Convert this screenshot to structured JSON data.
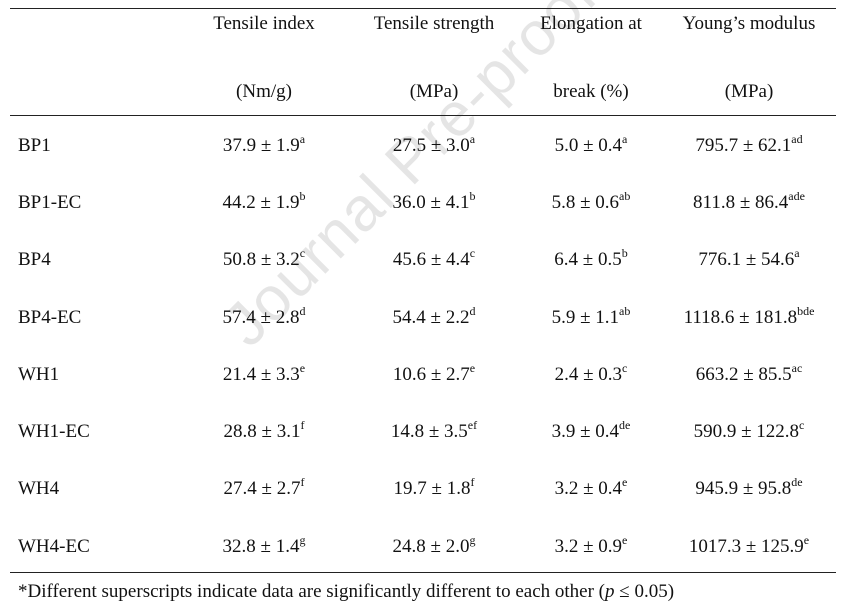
{
  "watermark": "Journal Pre-proof",
  "headers": [
    {
      "line1": "",
      "line2": ""
    },
    {
      "line1": "Tensile index",
      "line2": "(Nm/g)"
    },
    {
      "line1": "Tensile strength",
      "line2": "(MPa)"
    },
    {
      "line1": "Elongation at",
      "line2": "break (%)"
    },
    {
      "line1": "Young’s modulus",
      "line2": "(MPa)"
    }
  ],
  "rows": [
    {
      "name": "BP1",
      "cells": [
        {
          "v": "37.9 ± 1.9",
          "s": "a"
        },
        {
          "v": "27.5 ± 3.0",
          "s": "a"
        },
        {
          "v": "5.0 ± 0.4",
          "s": "a"
        },
        {
          "v": "795.7 ± 62.1",
          "s": "ad"
        }
      ]
    },
    {
      "name": "BP1-EC",
      "cells": [
        {
          "v": "44.2 ± 1.9",
          "s": "b"
        },
        {
          "v": "36.0 ± 4.1",
          "s": "b"
        },
        {
          "v": "5.8 ± 0.6",
          "s": "ab"
        },
        {
          "v": "811.8 ± 86.4",
          "s": "ade"
        }
      ]
    },
    {
      "name": "BP4",
      "cells": [
        {
          "v": "50.8 ± 3.2",
          "s": "c"
        },
        {
          "v": "45.6 ± 4.4",
          "s": "c"
        },
        {
          "v": "6.4 ± 0.5",
          "s": "b"
        },
        {
          "v": "776.1 ± 54.6",
          "s": "a"
        }
      ]
    },
    {
      "name": "BP4-EC",
      "cells": [
        {
          "v": "57.4 ± 2.8",
          "s": "d"
        },
        {
          "v": "54.4 ± 2.2",
          "s": "d"
        },
        {
          "v": "5.9 ± 1.1",
          "s": "ab"
        },
        {
          "v": "1118.6 ± 181.8",
          "s": "bde"
        }
      ]
    },
    {
      "name": "WH1",
      "cells": [
        {
          "v": "21.4 ± 3.3",
          "s": "e"
        },
        {
          "v": "10.6 ± 2.7",
          "s": "e"
        },
        {
          "v": "2.4 ± 0.3",
          "s": "c"
        },
        {
          "v": "663.2 ± 85.5",
          "s": "ac"
        }
      ]
    },
    {
      "name": "WH1-EC",
      "cells": [
        {
          "v": "28.8 ± 3.1",
          "s": "f"
        },
        {
          "v": "14.8 ± 3.5",
          "s": "ef"
        },
        {
          "v": "3.9 ± 0.4",
          "s": "de"
        },
        {
          "v": "590.9 ± 122.8",
          "s": "c"
        }
      ]
    },
    {
      "name": "WH4",
      "cells": [
        {
          "v": "27.4 ± 2.7",
          "s": "f"
        },
        {
          "v": "19.7 ± 1.8",
          "s": "f"
        },
        {
          "v": "3.2 ± 0.4",
          "s": "e"
        },
        {
          "v": "945.9 ± 95.8",
          "s": "de"
        }
      ]
    },
    {
      "name": "WH4-EC",
      "cells": [
        {
          "v": "32.8 ± 1.4",
          "s": "g"
        },
        {
          "v": "24.8 ± 2.0",
          "s": "g"
        },
        {
          "v": "3.2 ± 0.9",
          "s": "e"
        },
        {
          "v": "1017.3 ± 125.9",
          "s": "e"
        }
      ]
    }
  ],
  "footnote": {
    "text_before": "*Different superscripts indicate data are significantly different to each other (",
    "italic": "p",
    "text_after": " ≤ 0.05)"
  }
}
